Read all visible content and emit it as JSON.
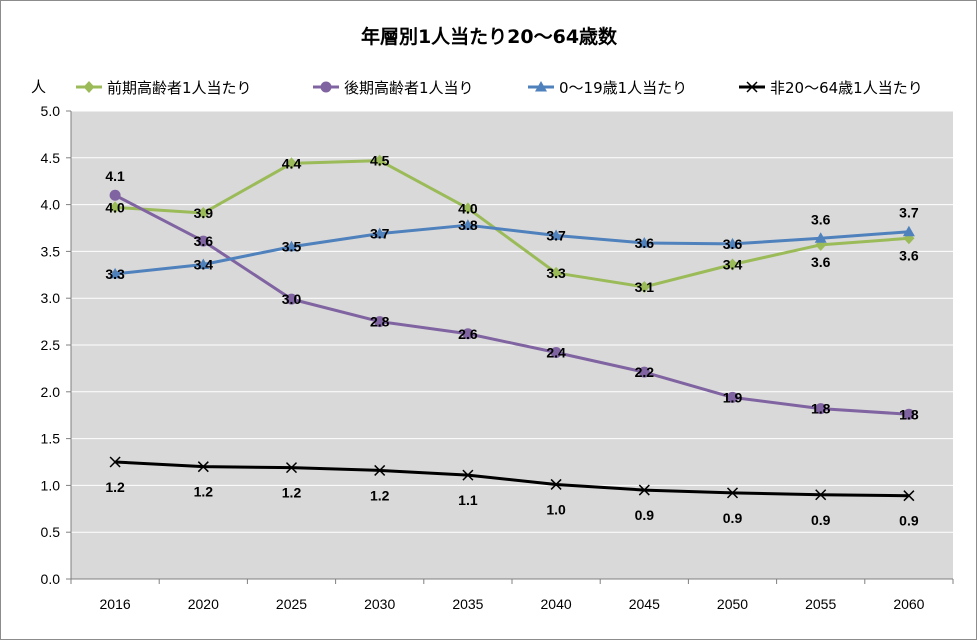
{
  "chart_data": {
    "type": "line",
    "title": "年層別1人当たり20～64歳数",
    "ylabel": "人",
    "xlabel": "",
    "ylim": [
      0,
      5
    ],
    "yticks": [
      0.0,
      0.5,
      1.0,
      1.5,
      2.0,
      2.5,
      3.0,
      3.5,
      4.0,
      4.5,
      5.0
    ],
    "ytick_labels": [
      "0.0",
      "0.5",
      "1.0",
      "1.5",
      "2.0",
      "2.5",
      "3.0",
      "3.5",
      "4.0",
      "4.5",
      "5.0"
    ],
    "categories": [
      "2016",
      "2020",
      "2025",
      "2030",
      "2035",
      "2040",
      "2045",
      "2050",
      "2055",
      "2060"
    ],
    "grid": "horizontal",
    "legend_position": "top",
    "plot_background": "#d9d9d9",
    "series": [
      {
        "name": "前期高齢者1人当たり",
        "color": "#9bbb59",
        "marker": "diamond",
        "values": [
          3.97,
          3.91,
          4.44,
          4.47,
          3.96,
          3.27,
          3.12,
          3.36,
          3.57,
          3.64
        ],
        "labels": [
          "4.0",
          "3.9",
          "4.4",
          "4.5",
          "4.0",
          "3.3",
          "3.1",
          "3.4",
          "3.6",
          "3.6"
        ]
      },
      {
        "name": "後期高齢者1人当り",
        "color": "#8064a2",
        "marker": "circle",
        "values": [
          4.1,
          3.61,
          2.99,
          2.75,
          2.62,
          2.42,
          2.21,
          1.94,
          1.82,
          1.76
        ],
        "labels": [
          "4.1",
          "3.6",
          "3.0",
          "2.8",
          "2.6",
          "2.4",
          "2.2",
          "1.9",
          "1.8",
          "1.8"
        ]
      },
      {
        "name": "0～19歳1人当たり",
        "color": "#4f81bd",
        "marker": "triangle",
        "values": [
          3.26,
          3.36,
          3.55,
          3.69,
          3.78,
          3.67,
          3.59,
          3.58,
          3.64,
          3.71
        ],
        "labels": [
          "3.3",
          "3.4",
          "3.5",
          "3.7",
          "3.8",
          "3.7",
          "3.6",
          "3.6",
          "3.6",
          "3.7"
        ]
      },
      {
        "name": "非20～64歳1人当たり",
        "color": "#000000",
        "marker": "x",
        "values": [
          1.25,
          1.2,
          1.19,
          1.16,
          1.11,
          1.01,
          0.95,
          0.92,
          0.9,
          0.89
        ],
        "labels": [
          "1.2",
          "1.2",
          "1.2",
          "1.2",
          "1.1",
          "1.0",
          "0.9",
          "0.9",
          "0.9",
          "0.9"
        ]
      }
    ]
  }
}
